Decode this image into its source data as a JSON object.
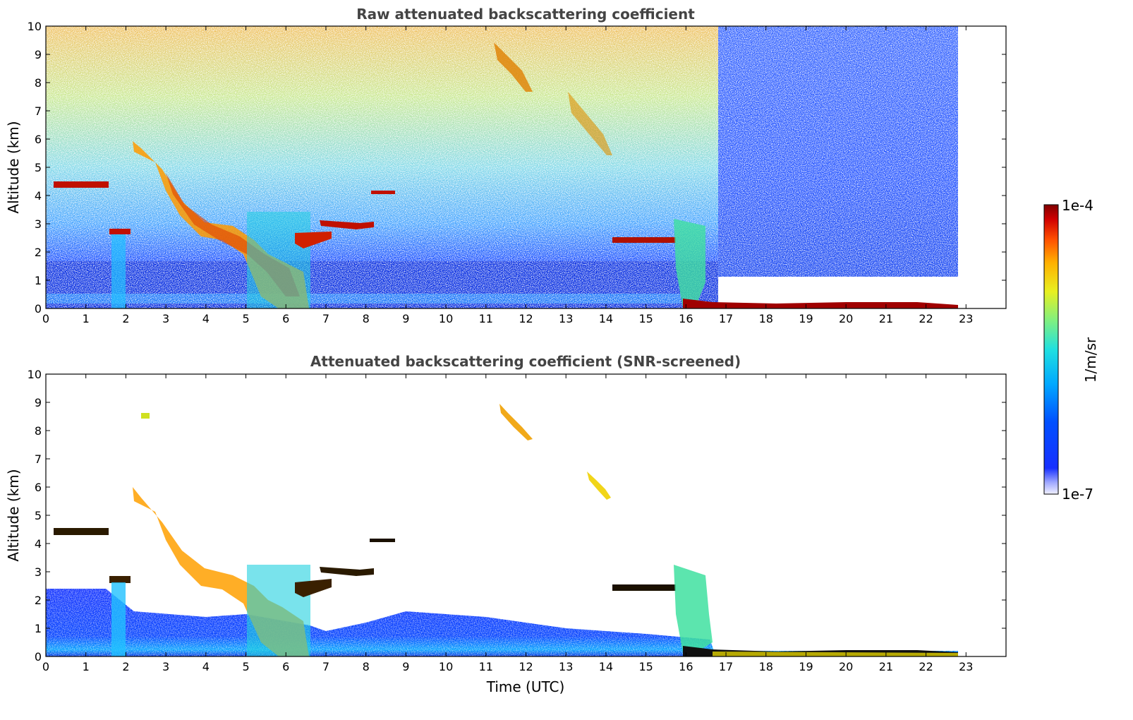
{
  "chart_data": [
    {
      "type": "heatmap",
      "title": "Raw attenuated backscattering coefficient",
      "xlabel": "",
      "ylabel": "Altitude (km)",
      "xlim": [
        0,
        24
      ],
      "ylim": [
        0,
        10
      ],
      "x_ticks": [
        "0",
        "1",
        "2",
        "3",
        "4",
        "5",
        "6",
        "7",
        "8",
        "9",
        "10",
        "11",
        "12",
        "13",
        "14",
        "15",
        "16",
        "17",
        "18",
        "19",
        "20",
        "21",
        "22",
        "23"
      ],
      "y_ticks": [
        "0",
        "1",
        "2",
        "3",
        "4",
        "5",
        "6",
        "7",
        "8",
        "9",
        "10"
      ],
      "data_end_time": 22.8,
      "noise_change_time": 16.8,
      "features": [
        {
          "name": "cloud layer 4.5 km",
          "t": [
            0.2,
            1.6
          ],
          "alt": [
            4.2,
            4.5
          ],
          "level": "high"
        },
        {
          "name": "cloud 2.8 km",
          "t": [
            1.6,
            2.1
          ],
          "alt": [
            2.6,
            2.8
          ],
          "level": "high"
        },
        {
          "name": "descending cloud",
          "t": [
            2.2,
            6.6
          ],
          "alt_start": 5.8,
          "alt_end": 1.4,
          "level": "medium-high"
        },
        {
          "name": "cloud 3 km",
          "t": [
            6.7,
            8.2
          ],
          "alt": [
            2.4,
            3.0
          ],
          "level": "high"
        },
        {
          "name": "cloud 4.1 km",
          "t": [
            7.9,
            8.7
          ],
          "alt": [
            4.1,
            4.1
          ],
          "level": "high"
        },
        {
          "name": "cirrus 9-8 km",
          "t": [
            11.3,
            12.1
          ],
          "alt_start": 8.8,
          "alt_end": 7.7,
          "level": "medium"
        },
        {
          "name": "cirrus 7-5.5 km",
          "t": [
            13.0,
            14.0
          ],
          "alt_start": 6.8,
          "alt_end": 5.6,
          "level": "medium"
        },
        {
          "name": "cloud 2.5 km",
          "t": [
            14.2,
            15.7
          ],
          "alt": [
            2.4,
            2.6
          ],
          "level": "high"
        },
        {
          "name": "precipitation shaft",
          "t": [
            15.7,
            16.6
          ],
          "alt": [
            0,
            3.2
          ],
          "level": "medium"
        },
        {
          "name": "surface layer",
          "t": [
            16.6,
            22.8
          ],
          "alt": [
            0,
            0.2
          ],
          "level": "high"
        }
      ]
    },
    {
      "type": "heatmap",
      "title": "Attenuated backscattering coefficient (SNR-screened)",
      "xlabel": "Time (UTC)",
      "ylabel": "Altitude (km)",
      "xlim": [
        0,
        24
      ],
      "ylim": [
        0,
        10
      ],
      "x_ticks": [
        "0",
        "1",
        "2",
        "3",
        "4",
        "5",
        "6",
        "7",
        "8",
        "9",
        "10",
        "11",
        "12",
        "13",
        "14",
        "15",
        "16",
        "17",
        "18",
        "19",
        "20",
        "21",
        "22",
        "23"
      ],
      "y_ticks": [
        "0",
        "1",
        "2",
        "3",
        "4",
        "5",
        "6",
        "7",
        "8",
        "9",
        "10"
      ],
      "boundary_layer_top": [
        [
          0,
          2.4
        ],
        [
          1.5,
          2.4
        ],
        [
          2.2,
          1.6
        ],
        [
          4,
          1.4
        ],
        [
          5,
          1.5
        ],
        [
          6.6,
          1.1
        ],
        [
          7,
          0.9
        ],
        [
          8,
          1.2
        ],
        [
          9,
          1.6
        ],
        [
          11,
          1.4
        ],
        [
          13,
          1.0
        ],
        [
          15,
          0.8
        ],
        [
          16.6,
          0.6
        ],
        [
          16.7,
          0.2
        ],
        [
          22.8,
          0.2
        ]
      ]
    }
  ],
  "colorbar": {
    "label": "1/m/sr",
    "max_label": "1e-4",
    "min_label": "1e-7",
    "colors": [
      "#e8e8ff",
      "#a0a8ff",
      "#1830ff",
      "#0050ff",
      "#00a8ff",
      "#20e0e0",
      "#80f080",
      "#e8f020",
      "#ffb000",
      "#ff5000",
      "#d00000",
      "#800000"
    ]
  }
}
